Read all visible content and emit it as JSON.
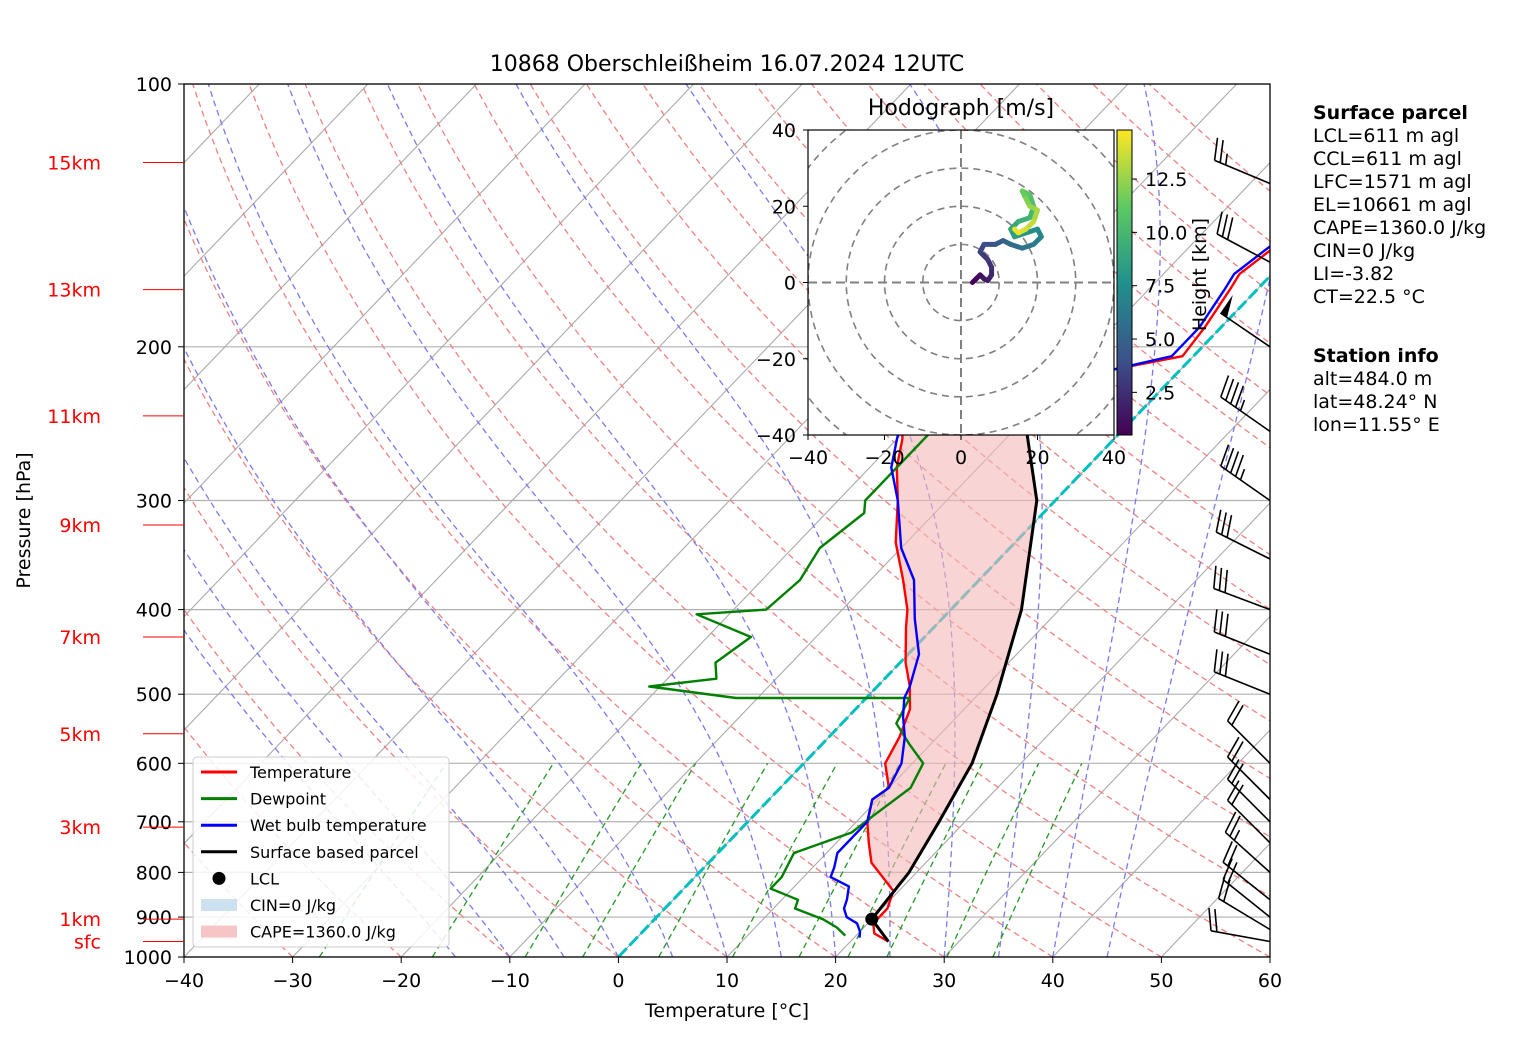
{
  "chart_data": [
    {
      "type": "line",
      "subtype": "skew-T log-P",
      "title": "10868 Oberschleißheim 16.07.2024 12UTC",
      "xlabel": "Temperature [°C]",
      "ylabel": "Pressure [hPa]",
      "xlim": [
        -40,
        60
      ],
      "ylim": [
        1000,
        100
      ],
      "yscale": "log",
      "grid": true,
      "x_ticks": [
        -40,
        -30,
        -20,
        -10,
        0,
        10,
        20,
        30,
        40,
        50,
        60
      ],
      "y_ticks": [
        100,
        200,
        300,
        400,
        500,
        600,
        700,
        800,
        900,
        1000
      ],
      "height_labels": [
        {
          "label": "sfc",
          "pressure": 960
        },
        {
          "label": "1km",
          "pressure": 905
        },
        {
          "label": "3km",
          "pressure": 710
        },
        {
          "label": "5km",
          "pressure": 555
        },
        {
          "label": "7km",
          "pressure": 430
        },
        {
          "label": "9km",
          "pressure": 320
        },
        {
          "label": "11km",
          "pressure": 240
        },
        {
          "label": "13km",
          "pressure": 172
        },
        {
          "label": "15km",
          "pressure": 123
        }
      ],
      "series": [
        {
          "name": "Temperature",
          "color": "#ff0000",
          "points": [
            [
              23.5,
              960
            ],
            [
              21.5,
              940
            ],
            [
              20.5,
              915
            ],
            [
              20.5,
              880
            ],
            [
              19.5,
              840
            ],
            [
              15,
              780
            ],
            [
              13,
              740
            ],
            [
              11,
              700
            ],
            [
              9.5,
              660
            ],
            [
              10,
              640
            ],
            [
              7.5,
              600
            ],
            [
              6.5,
              560
            ],
            [
              5,
              520
            ],
            [
              3,
              490
            ],
            [
              0.5,
              460
            ],
            [
              -2.5,
              420
            ],
            [
              -4,
              400
            ],
            [
              -7,
              370
            ],
            [
              -11,
              335
            ],
            [
              -14.5,
              300
            ],
            [
              -17.5,
              275
            ],
            [
              -19.5,
              255
            ],
            [
              -21.5,
              240
            ],
            [
              -16.5,
              228
            ],
            [
              -6,
              212
            ],
            [
              -1,
              205
            ],
            [
              -1.5,
              190
            ],
            [
              -2.5,
              172
            ],
            [
              -3,
              165
            ],
            [
              -2,
              152
            ],
            [
              0,
              145
            ],
            [
              3,
              137
            ],
            [
              5,
              133
            ],
            [
              6.5,
              125
            ]
          ]
        },
        {
          "name": "Dewpoint",
          "color": "#008000",
          "points": [
            [
              19,
              945
            ],
            [
              17.5,
              925
            ],
            [
              15.5,
              905
            ],
            [
              12,
              880
            ],
            [
              11.5,
              860
            ],
            [
              8,
              835
            ],
            [
              8,
              810
            ],
            [
              7,
              760
            ],
            [
              10.5,
              720
            ],
            [
              11,
              690
            ],
            [
              12,
              640
            ],
            [
              11,
              600
            ],
            [
              8,
              570
            ],
            [
              5,
              540
            ],
            [
              4,
              505
            ],
            [
              -12,
              505
            ],
            [
              -21,
              490
            ],
            [
              -15.5,
              480
            ],
            [
              -17,
              460
            ],
            [
              -16,
              430
            ],
            [
              -23,
              405
            ],
            [
              -17,
              400
            ],
            [
              -16.5,
              370
            ],
            [
              -17.5,
              340
            ],
            [
              -16.5,
              310
            ],
            [
              -17.5,
              300
            ],
            [
              -17.5,
              265
            ],
            [
              -17.5,
              245
            ],
            [
              -22,
              235
            ],
            [
              -27,
              215
            ],
            [
              -28.5,
              205
            ],
            [
              -28,
              190
            ],
            [
              -26.5,
              180
            ],
            [
              -27,
              170
            ],
            [
              -26,
              160
            ],
            [
              -24.5,
              148
            ],
            [
              -23.5,
              135
            ],
            [
              -24,
              125
            ]
          ]
        },
        {
          "name": "Wet bulb temperature",
          "color": "#0000ff",
          "points": [
            [
              20.5,
              950
            ],
            [
              20,
              935
            ],
            [
              19,
              915
            ],
            [
              17.5,
              900
            ],
            [
              16.5,
              880
            ],
            [
              16,
              860
            ],
            [
              15,
              830
            ],
            [
              12.5,
              810
            ],
            [
              12,
              790
            ],
            [
              11,
              760
            ],
            [
              11,
              700
            ],
            [
              9.5,
              660
            ],
            [
              10,
              640
            ],
            [
              9,
              600
            ],
            [
              7,
              560
            ],
            [
              5,
              530
            ],
            [
              3.5,
              505
            ],
            [
              3,
              490
            ],
            [
              1,
              450
            ],
            [
              -2.5,
              410
            ],
            [
              -6,
              370
            ],
            [
              -10,
              340
            ],
            [
              -14.5,
              300
            ],
            [
              -18,
              275
            ],
            [
              -20,
              255
            ],
            [
              -21.5,
              240
            ],
            [
              -16,
              228
            ],
            [
              -6,
              212
            ],
            [
              -2,
              205
            ],
            [
              -2,
              190
            ],
            [
              -3,
              172
            ],
            [
              -3.5,
              165
            ],
            [
              -2.5,
              152
            ],
            [
              -0.5,
              145
            ],
            [
              2.5,
              137
            ],
            [
              4.5,
              133
            ],
            [
              6,
              125
            ]
          ]
        },
        {
          "name": "Surface based parcel",
          "color": "#000000",
          "points": [
            [
              23.5,
              960
            ],
            [
              20,
              905
            ],
            [
              19.3,
              800
            ],
            [
              17.6,
              700
            ],
            [
              15.5,
              600
            ],
            [
              11.7,
              500
            ],
            [
              6.5,
              400
            ],
            [
              -1.7,
              300
            ],
            [
              -10.3,
              240
            ],
            [
              -18.4,
              200
            ],
            [
              -27.4,
              170
            ],
            [
              -35.5,
              150
            ],
            [
              -44.1,
              133
            ],
            [
              -49.6,
              125
            ]
          ]
        }
      ],
      "lcl": {
        "temperature": 20,
        "pressure": 905
      },
      "cape_area": {
        "label": "CAPE=1360.0 J/kg"
      },
      "cin_area": {
        "label": "CIN=0 J/kg"
      },
      "legend": {
        "placement": "lower-left",
        "entries": [
          "Temperature",
          "Dewpoint",
          "Wet bulb temperature",
          "Surface based parcel",
          "LCL",
          "CIN=0 J/kg",
          "CAPE=1360.0 J/kg"
        ]
      },
      "wind_barbs": [
        {
          "pressure": 960,
          "u": -11,
          "v": 2
        },
        {
          "pressure": 930,
          "u": -10,
          "v": 6
        },
        {
          "pressure": 900,
          "u": -10,
          "v": 8
        },
        {
          "pressure": 860,
          "u": -10,
          "v": 8
        },
        {
          "pressure": 800,
          "u": -10,
          "v": 9
        },
        {
          "pressure": 740,
          "u": -9,
          "v": 9
        },
        {
          "pressure": 700,
          "u": -9,
          "v": 9
        },
        {
          "pressure": 660,
          "u": -9,
          "v": 9
        },
        {
          "pressure": 600,
          "u": -9,
          "v": 9
        },
        {
          "pressure": 500,
          "u": -15,
          "v": 6
        },
        {
          "pressure": 450,
          "u": -15,
          "v": 6
        },
        {
          "pressure": 400,
          "u": -16,
          "v": 6
        },
        {
          "pressure": 350,
          "u": -16,
          "v": 8
        },
        {
          "pressure": 300,
          "u": -20,
          "v": 14
        },
        {
          "pressure": 250,
          "u": -20,
          "v": 14
        },
        {
          "pressure": 200,
          "u": -22,
          "v": 15
        },
        {
          "pressure": 160,
          "u": -15,
          "v": 8
        },
        {
          "pressure": 130,
          "u": -12,
          "v": 5
        }
      ],
      "isotherm_highlight": {
        "temperature": 0,
        "color": "#00bfbf"
      }
    },
    {
      "type": "line",
      "subtype": "hodograph",
      "title": "Hodograph [m/s]",
      "xlim": [
        -40,
        40
      ],
      "ylim": [
        -40,
        40
      ],
      "x_ticks": [
        -40,
        -20,
        0,
        20,
        40
      ],
      "y_ticks": [
        -40,
        -20,
        0,
        20,
        40
      ],
      "rings": [
        10,
        20,
        30,
        40,
        50
      ],
      "colorbar": {
        "label": "Height [km]",
        "ticks": [
          2.5,
          5.0,
          7.5,
          10.0,
          12.5
        ],
        "range": [
          0.5,
          14.8
        ],
        "colormap": "viridis"
      },
      "points": [
        [
          3,
          0,
          0.5
        ],
        [
          4,
          1,
          0.8
        ],
        [
          5,
          2,
          1.2
        ],
        [
          6,
          1,
          1.5
        ],
        [
          7,
          0.5,
          1.8
        ],
        [
          8,
          2,
          2.2
        ],
        [
          8,
          4,
          2.6
        ],
        [
          7,
          6,
          3.0
        ],
        [
          5,
          8,
          3.5
        ],
        [
          6,
          10,
          4.0
        ],
        [
          9,
          10,
          4.5
        ],
        [
          11,
          11,
          5.0
        ],
        [
          13,
          10,
          5.5
        ],
        [
          16,
          9,
          6.0
        ],
        [
          19,
          10,
          6.5
        ],
        [
          21,
          12,
          7.0
        ],
        [
          20,
          14,
          7.5
        ],
        [
          17,
          13,
          8.0
        ],
        [
          14,
          12,
          8.5
        ],
        [
          13,
          14,
          9.0
        ],
        [
          15,
          16,
          9.5
        ],
        [
          18,
          17,
          10.0
        ],
        [
          19,
          20,
          10.5
        ],
        [
          18,
          23,
          11.0
        ],
        [
          16,
          24,
          11.5
        ],
        [
          17,
          22,
          12.0
        ],
        [
          18,
          20,
          12.5
        ],
        [
          20,
          19,
          13.0
        ],
        [
          19,
          16,
          13.5
        ],
        [
          17,
          14,
          14.0
        ],
        [
          15,
          13,
          14.4
        ],
        [
          14,
          14,
          14.8
        ]
      ]
    }
  ],
  "surface_parcel": {
    "title": "Surface parcel",
    "lcl": "LCL=611 m agl",
    "ccl": "CCL=611 m agl",
    "lfc": "LFC=1571 m agl",
    "el": "EL=10661 m agl",
    "cape": "CAPE=1360.0 J/kg",
    "cin": "CIN=0 J/kg",
    "li": "LI=-3.82",
    "ct": "CT=22.5 °C"
  },
  "station_info": {
    "title": "Station info",
    "alt": "alt=484.0 m",
    "lat": "lat=48.24° N",
    "lon": "lon=11.55° E"
  }
}
